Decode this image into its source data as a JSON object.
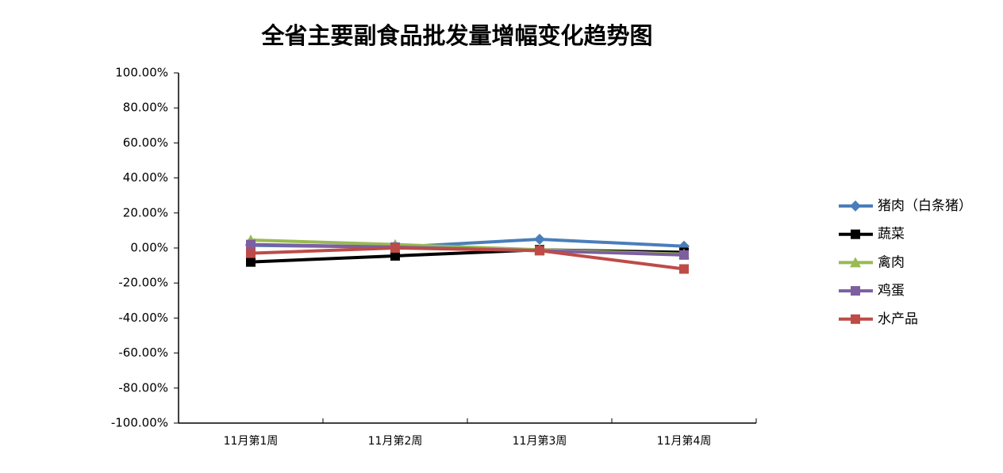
{
  "chart_data": {
    "type": "line",
    "title": "全省主要副食品批发量增幅变化趋势图",
    "categories": [
      "11月第1周",
      "11月第2周",
      "11月第3周",
      "11月第4周"
    ],
    "series": [
      {
        "name": "猪肉（白条猪）",
        "color": "#4a7ebb",
        "marker": "diamond",
        "values": [
          1.5,
          0.5,
          5,
          1
        ]
      },
      {
        "name": "蔬菜",
        "color": "#000000",
        "marker": "square",
        "values": [
          -8,
          -4.5,
          -1,
          -2.5
        ]
      },
      {
        "name": "禽肉",
        "color": "#98b954",
        "marker": "triangle",
        "values": [
          4.5,
          2,
          -1,
          -3.5
        ]
      },
      {
        "name": "鸡蛋",
        "color": "#7d5fa0",
        "marker": "square",
        "values": [
          2,
          0.5,
          -1.5,
          -4
        ]
      },
      {
        "name": "水产品",
        "color": "#be4b48",
        "marker": "square",
        "values": [
          -3,
          0,
          -1.5,
          -12
        ]
      }
    ],
    "ylim": [
      -100,
      100
    ],
    "yticks": [
      {
        "value": -100,
        "label": "-100.00%"
      },
      {
        "value": -80,
        "label": "-80.00%"
      },
      {
        "value": -60,
        "label": "-60.00%"
      },
      {
        "value": -40,
        "label": "-40.00%"
      },
      {
        "value": -20,
        "label": "-20.00%"
      },
      {
        "value": 0,
        "label": "0.00%"
      },
      {
        "value": 20,
        "label": "20.00%"
      },
      {
        "value": 40,
        "label": "40.00%"
      },
      {
        "value": 60,
        "label": "60.00%"
      },
      {
        "value": 80,
        "label": "80.00%"
      },
      {
        "value": 100,
        "label": "100.00%"
      }
    ],
    "grid": false,
    "legend": "right"
  }
}
